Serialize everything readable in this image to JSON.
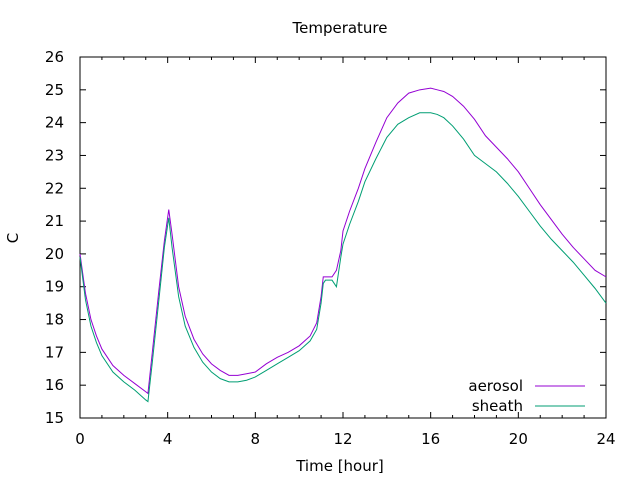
{
  "chart_data": {
    "type": "line",
    "title": "Temperature",
    "xlabel": "Time [hour]",
    "ylabel": "C",
    "xlim": [
      0,
      24
    ],
    "ylim": [
      15,
      26
    ],
    "xticks": [
      0,
      4,
      8,
      12,
      16,
      20,
      24
    ],
    "yticks": [
      15,
      16,
      17,
      18,
      19,
      20,
      21,
      22,
      23,
      24,
      25,
      26
    ],
    "grid": false,
    "legend": "bottom-right",
    "series": [
      {
        "name": "aerosol",
        "color": "#9400d3",
        "x": [
          0,
          0.25,
          0.5,
          0.75,
          1.0,
          1.5,
          2.0,
          2.5,
          3.0,
          3.1,
          3.3,
          3.6,
          3.85,
          4.05,
          4.2,
          4.5,
          4.8,
          5.2,
          5.6,
          6.0,
          6.4,
          6.8,
          7.2,
          7.6,
          8.0,
          8.5,
          9.0,
          9.5,
          10.0,
          10.5,
          10.8,
          11.0,
          11.1,
          11.2,
          11.5,
          11.7,
          11.9,
          12.0,
          12.3,
          12.7,
          13.0,
          13.5,
          14.0,
          14.5,
          15.0,
          15.5,
          16.0,
          16.3,
          16.6,
          17.0,
          17.5,
          18.0,
          18.5,
          19.0,
          19.5,
          20.0,
          20.5,
          21.0,
          21.5,
          22.0,
          22.5,
          23.0,
          23.5,
          24.0
        ],
        "values": [
          20.0,
          18.8,
          18.0,
          17.5,
          17.1,
          16.6,
          16.3,
          16.05,
          15.8,
          15.75,
          17.0,
          18.9,
          20.4,
          21.35,
          20.6,
          19.0,
          18.1,
          17.4,
          16.95,
          16.65,
          16.45,
          16.3,
          16.3,
          16.35,
          16.4,
          16.65,
          16.85,
          17.0,
          17.2,
          17.5,
          17.9,
          18.7,
          19.3,
          19.3,
          19.3,
          19.5,
          20.1,
          20.7,
          21.3,
          22.0,
          22.6,
          23.4,
          24.15,
          24.6,
          24.9,
          25.0,
          25.05,
          25.0,
          24.95,
          24.8,
          24.5,
          24.1,
          23.6,
          23.25,
          22.9,
          22.5,
          22.0,
          21.5,
          21.05,
          20.6,
          20.2,
          19.85,
          19.5,
          19.3
        ]
      },
      {
        "name": "sheath",
        "color": "#009e73",
        "x": [
          0,
          0.25,
          0.5,
          0.75,
          1.0,
          1.5,
          2.0,
          2.5,
          3.0,
          3.1,
          3.3,
          3.6,
          3.85,
          4.05,
          4.2,
          4.5,
          4.8,
          5.2,
          5.6,
          6.0,
          6.4,
          6.8,
          7.2,
          7.6,
          8.0,
          8.5,
          9.0,
          9.5,
          10.0,
          10.5,
          10.8,
          11.0,
          11.1,
          11.2,
          11.5,
          11.7,
          11.9,
          12.0,
          12.3,
          12.7,
          13.0,
          13.5,
          14.0,
          14.5,
          15.0,
          15.5,
          16.0,
          16.3,
          16.6,
          17.0,
          17.5,
          18.0,
          18.5,
          19.0,
          19.5,
          20.0,
          20.5,
          21.0,
          21.5,
          22.0,
          22.5,
          23.0,
          23.5,
          24.0
        ],
        "values": [
          19.9,
          18.6,
          17.8,
          17.3,
          16.9,
          16.4,
          16.1,
          15.85,
          15.55,
          15.5,
          16.7,
          18.6,
          20.2,
          21.1,
          20.2,
          18.7,
          17.8,
          17.15,
          16.7,
          16.4,
          16.2,
          16.1,
          16.1,
          16.15,
          16.25,
          16.45,
          16.65,
          16.85,
          17.05,
          17.35,
          17.7,
          18.5,
          19.1,
          19.2,
          19.2,
          19.0,
          19.9,
          20.3,
          20.9,
          21.6,
          22.2,
          22.9,
          23.55,
          23.95,
          24.15,
          24.3,
          24.3,
          24.25,
          24.15,
          23.9,
          23.5,
          23.0,
          22.75,
          22.5,
          22.15,
          21.75,
          21.3,
          20.85,
          20.45,
          20.1,
          19.75,
          19.35,
          18.95,
          18.5
        ]
      }
    ]
  }
}
